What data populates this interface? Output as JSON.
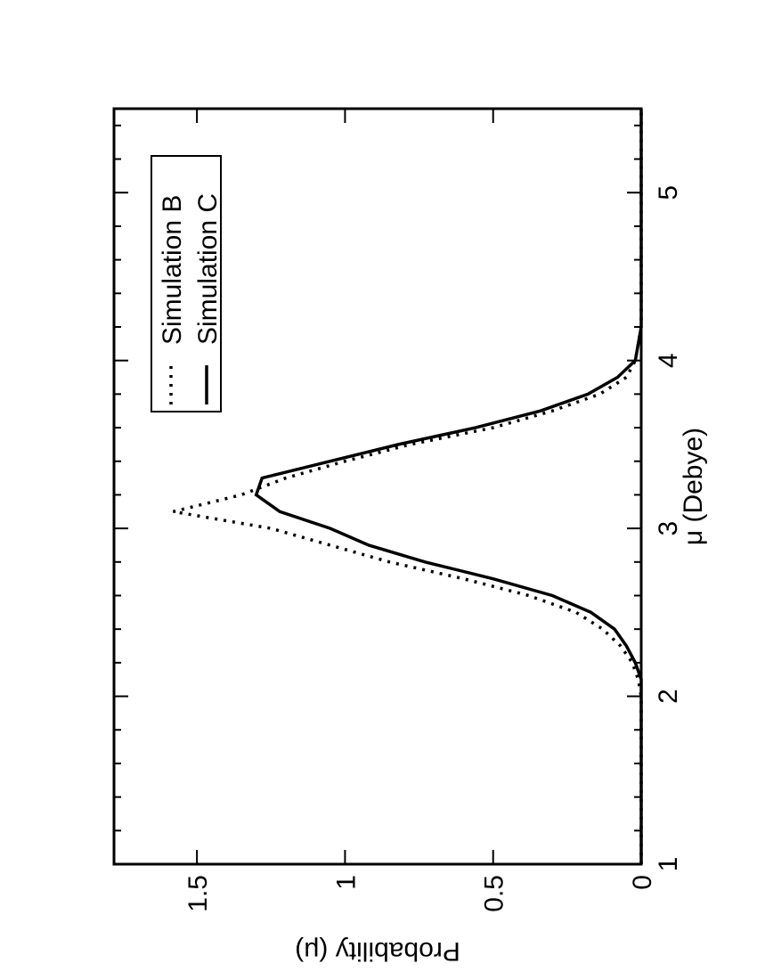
{
  "chart_data": {
    "type": "line",
    "xlabel": "μ (Debye)",
    "ylabel": "Probability (μ)",
    "x": [
      1,
      1.5,
      2,
      2.1,
      2.2,
      2.3,
      2.4,
      2.5,
      2.6,
      2.7,
      2.8,
      2.9,
      3,
      3.1,
      3.2,
      3.3,
      3.4,
      3.5,
      3.6,
      3.7,
      3.8,
      3.9,
      4,
      4.1,
      4.2,
      4.3,
      4.5,
      5,
      5.5
    ],
    "series": [
      {
        "name": "Simulation B",
        "color": "#000000",
        "linestyle": "dotted",
        "values": [
          0,
          0,
          0,
          0.01,
          0.03,
          0.07,
          0.13,
          0.22,
          0.38,
          0.6,
          0.85,
          1.05,
          1.25,
          1.58,
          1.35,
          1.2,
          1.0,
          0.78,
          0.5,
          0.3,
          0.14,
          0.05,
          0.02,
          0.01,
          0,
          0,
          0,
          0,
          0
        ]
      },
      {
        "name": "Simulation C",
        "color": "#000000",
        "linestyle": "solid",
        "values": [
          0,
          0,
          0,
          0,
          0.02,
          0.05,
          0.09,
          0.17,
          0.3,
          0.5,
          0.73,
          0.92,
          1.05,
          1.22,
          1.3,
          1.28,
          1.05,
          0.82,
          0.56,
          0.34,
          0.18,
          0.08,
          0.02,
          0.01,
          0,
          0,
          0,
          0,
          0
        ]
      }
    ],
    "xlim": [
      1,
      5.5
    ],
    "xticks": [
      1,
      2,
      3,
      4,
      5
    ],
    "xminorticks": [
      1.2,
      1.4,
      1.6,
      1.8,
      2.2,
      2.4,
      2.6,
      2.8,
      3.2,
      3.4,
      3.6,
      3.8,
      4.2,
      4.4,
      4.6,
      4.8,
      5.2,
      5.4
    ],
    "ylim": [
      0,
      1.78
    ],
    "yticks": [
      0,
      0.5,
      1,
      1.5
    ],
    "legend": "upper right",
    "grid": false
  }
}
